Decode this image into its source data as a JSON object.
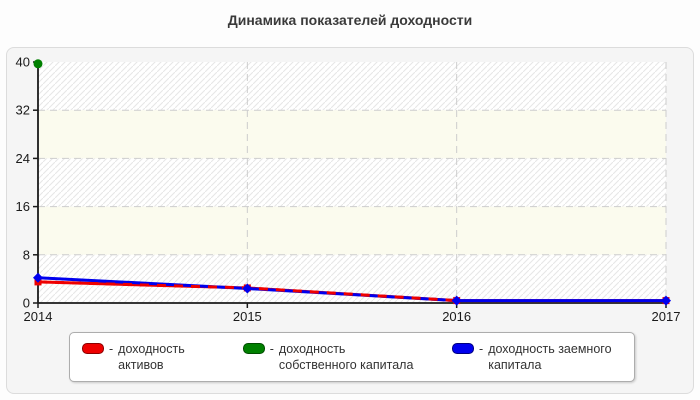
{
  "chart_data": {
    "type": "line",
    "title": "Динамика показателей доходности",
    "x": [
      "2014",
      "2015",
      "2016",
      "2017"
    ],
    "xlabel": "",
    "ylabel": "",
    "ylim": [
      0,
      40
    ],
    "yticks": [
      0,
      8,
      16,
      24,
      32,
      40
    ],
    "grid": true,
    "legend_position": "bottom",
    "series": [
      {
        "name": "доходность активов",
        "color": "#ee0000",
        "marker": "square",
        "line": "solid-with-dash-overlay",
        "values": [
          3.5,
          2.5,
          0.4,
          0.4
        ]
      },
      {
        "name": "доходность собственного капитала",
        "color": "#008000",
        "marker": "circle",
        "line": "none",
        "values": [
          39.7,
          null,
          null,
          null
        ]
      },
      {
        "name": "доходность заемного капитала",
        "color": "#0000ee",
        "marker": "diamond",
        "line": "solid",
        "values": [
          4.2,
          2.4,
          0.4,
          0.4
        ]
      }
    ],
    "legend": [
      {
        "dash": "-",
        "label": "доходность активов",
        "color": "#ee0000",
        "border": "#8b0000"
      },
      {
        "dash": "-",
        "label": "доходность собственного капитала",
        "color": "#008000",
        "border": "#004d00"
      },
      {
        "dash": "-",
        "label": "доходность заемного капитала",
        "color": "#0000ee",
        "border": "#000080"
      }
    ],
    "plot_style": {
      "band_plain": "#fbfbee",
      "band_hatch_bg": "#ffffff",
      "band_hatch_line": "#e7e7e7",
      "grid_color": "#cdcdcd",
      "axis_color": "#1a1a1a",
      "tick_label_color": "#1a1a1a"
    }
  }
}
